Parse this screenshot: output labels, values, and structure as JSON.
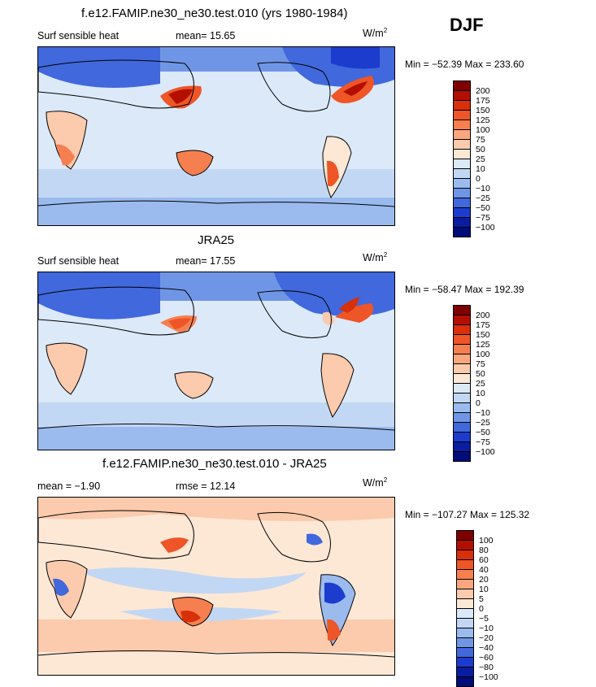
{
  "season": "DJF",
  "panels": [
    {
      "title": "f.e12.FAMIP.ne30_ne30.test.010 (yrs 1980-1984)",
      "left_label": "Surf sensible heat",
      "middle_label": "mean=   15.65",
      "units_main": "W/m",
      "units_exp": "2",
      "minmax": "Min = −52.39  Max = 233.60",
      "colorbar_labels": [
        "200",
        "175",
        "150",
        "125",
        "100",
        "75",
        "50",
        "25",
        "10",
        "0",
        "−10",
        "−25",
        "−50",
        "−75",
        "−100"
      ]
    },
    {
      "title": "JRA25",
      "left_label": "Surf sensible heat",
      "middle_label": "mean=   17.55",
      "units_main": "W/m",
      "units_exp": "2",
      "minmax": "Min = −58.47  Max = 192.39",
      "colorbar_labels": [
        "200",
        "175",
        "150",
        "125",
        "100",
        "75",
        "50",
        "25",
        "10",
        "0",
        "−10",
        "−25",
        "−50",
        "−75",
        "−100"
      ]
    },
    {
      "title": "f.e12.FAMIP.ne30_ne30.test.010 - JRA25",
      "left_label": "mean =   −1.90",
      "middle_label": "rmse =   12.14",
      "units_main": "W/m",
      "units_exp": "2",
      "minmax": "Min = −107.27  Max = 125.32",
      "colorbar_labels": [
        "100",
        "80",
        "60",
        "40",
        "20",
        "10",
        "5",
        "0",
        "−5",
        "−10",
        "−20",
        "−40",
        "−60",
        "−80",
        "−100"
      ]
    }
  ],
  "colorbar_colors": [
    "#7f0000",
    "#b30f00",
    "#d8300a",
    "#ee5527",
    "#f67f4f",
    "#fba67f",
    "#fccaac",
    "#fde8d6",
    "#dbe9f8",
    "#c2d7f3",
    "#9bbbee",
    "#6f96e6",
    "#4168dc",
    "#1c3ccd",
    "#0a1ca0",
    "#000c78"
  ]
}
